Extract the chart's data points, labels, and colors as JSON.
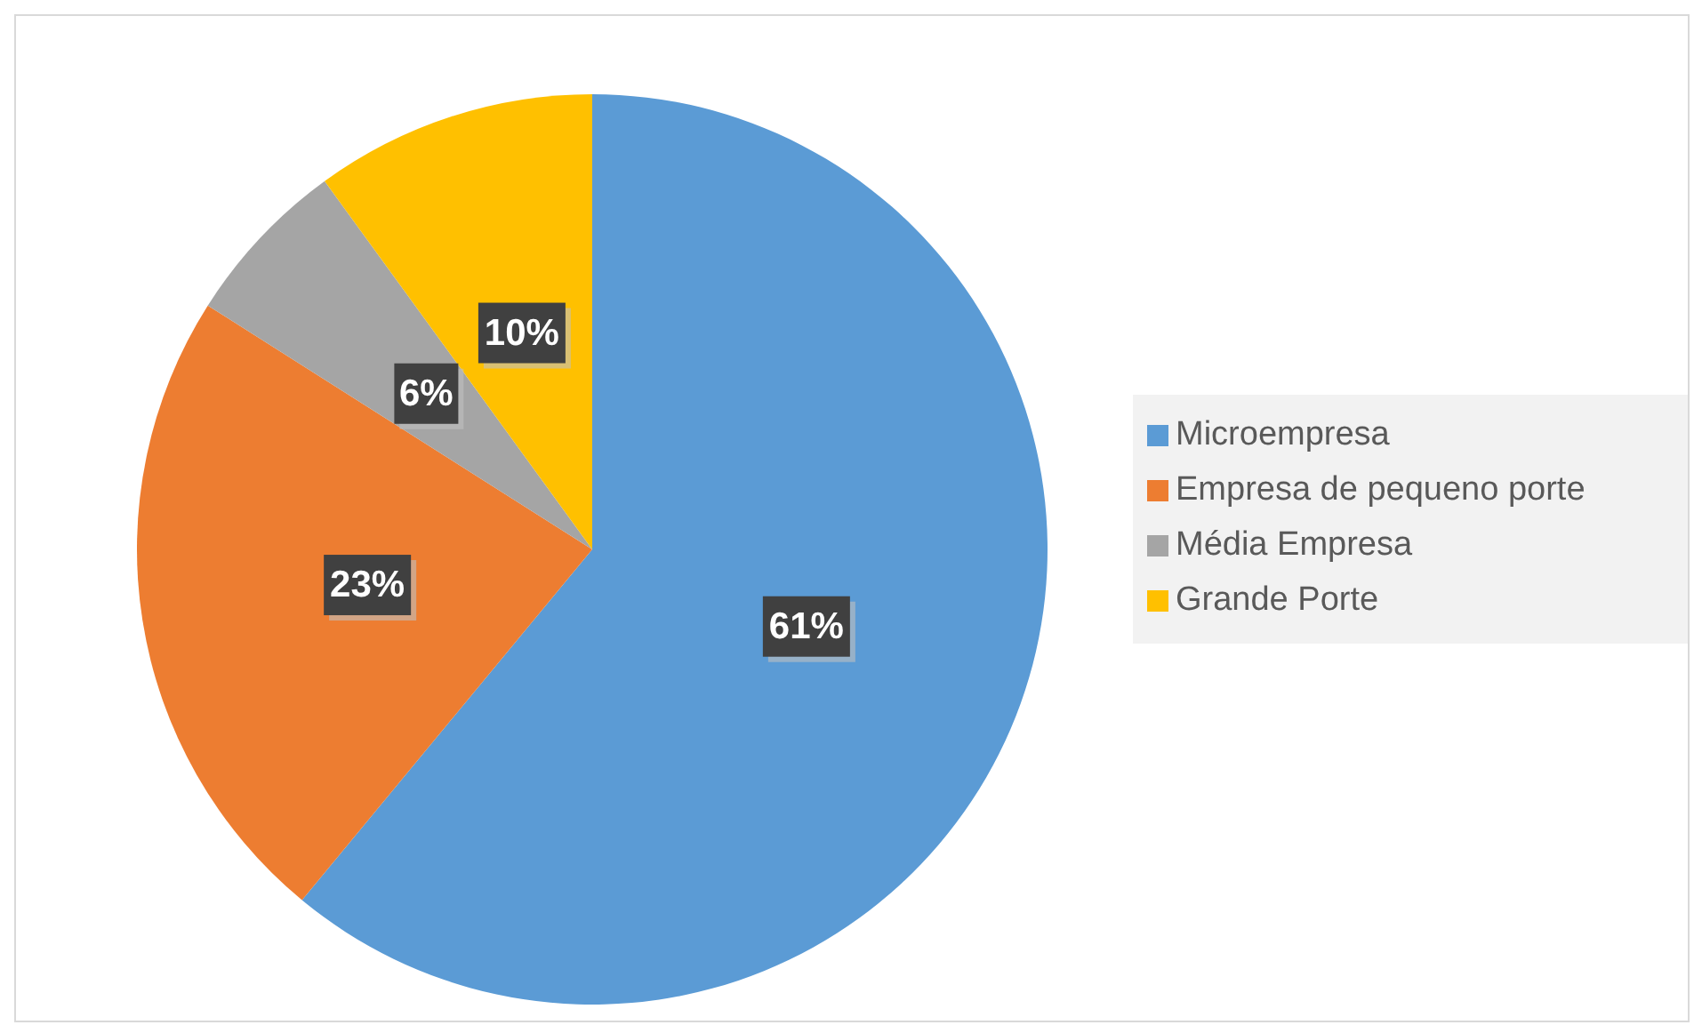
{
  "chart_data": {
    "type": "pie",
    "categories": [
      "Microempresa",
      "Empresa de pequeno porte",
      "Média Empresa",
      "Grande Porte"
    ],
    "values": [
      61,
      23,
      6,
      10
    ],
    "colors": [
      "#5b9bd5",
      "#ed7d31",
      "#a5a5a5",
      "#ffc000"
    ],
    "value_labels": [
      "61%",
      "23%",
      "6%",
      "10%"
    ],
    "legend": "right"
  }
}
